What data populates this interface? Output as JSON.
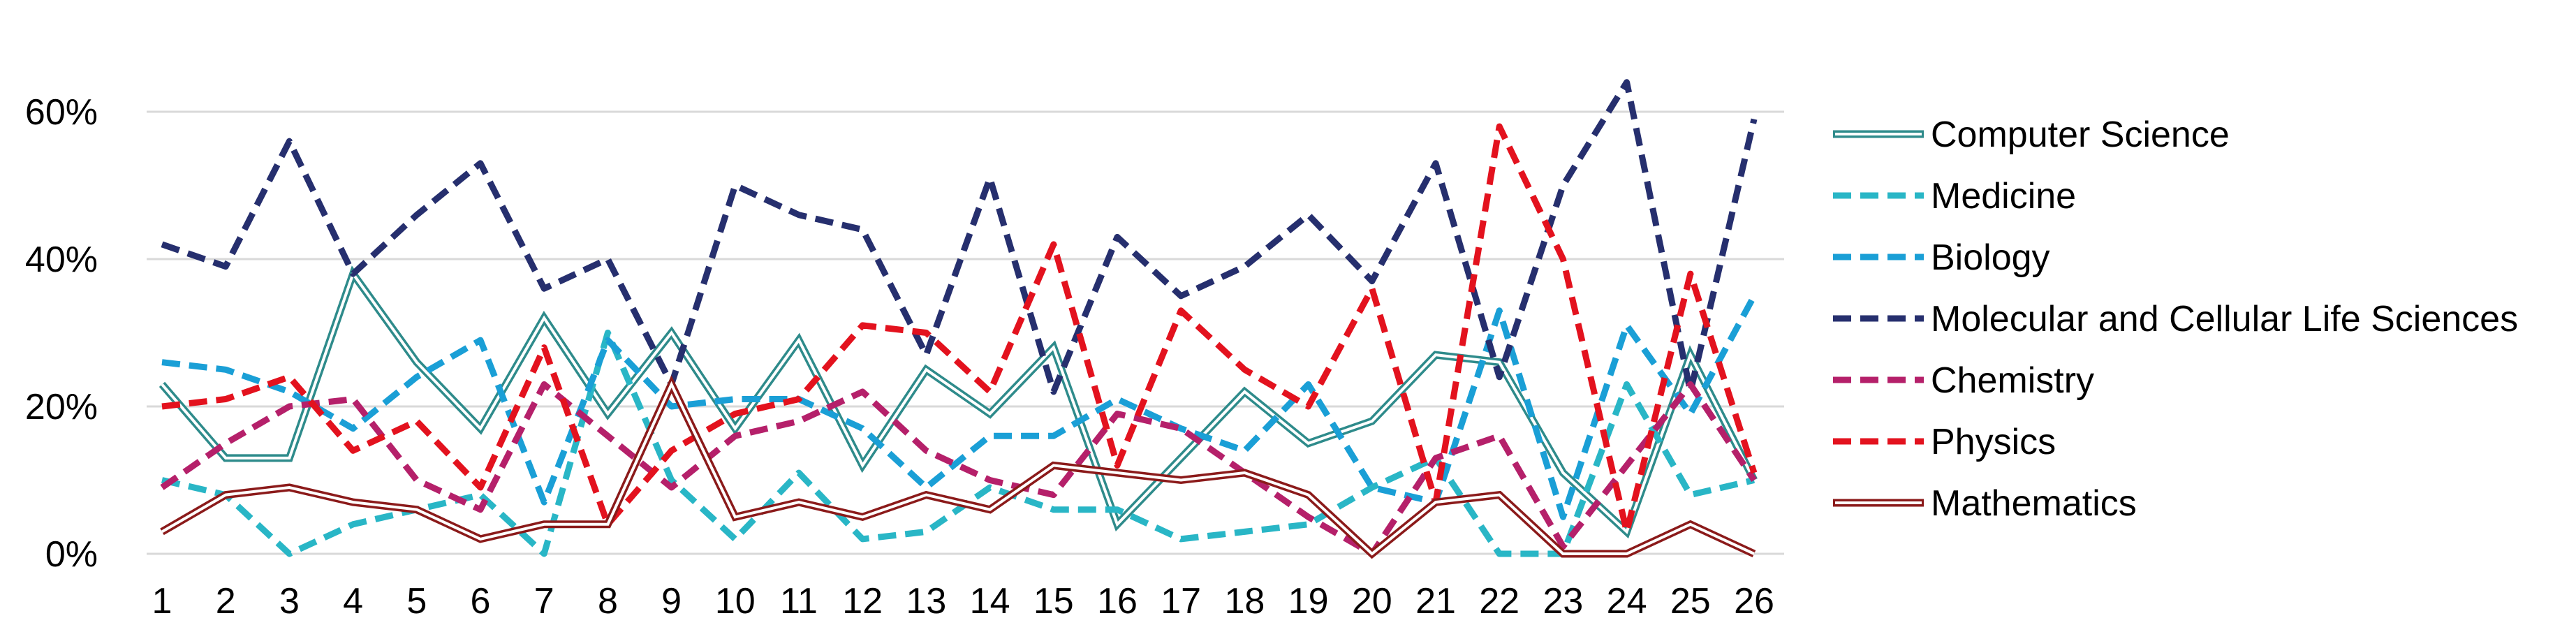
{
  "chart_data": {
    "type": "line",
    "title": "",
    "xlabel": "",
    "ylabel": "",
    "x": [
      1,
      2,
      3,
      4,
      5,
      6,
      7,
      8,
      9,
      10,
      11,
      12,
      13,
      14,
      15,
      16,
      17,
      18,
      19,
      20,
      21,
      22,
      23,
      24,
      25,
      26
    ],
    "x_tick_labels": [
      "1",
      "2",
      "3",
      "4",
      "5",
      "6",
      "7",
      "8",
      "9",
      "10",
      "11",
      "12",
      "13",
      "14",
      "15",
      "16",
      "17",
      "18",
      "19",
      "20",
      "21",
      "22",
      "23",
      "24",
      "25",
      "26"
    ],
    "ylim": [
      0,
      0.6
    ],
    "y_ticks": [
      0,
      0.2,
      0.4,
      0.6
    ],
    "y_tick_labels": [
      "0%",
      "20%",
      "40%",
      "60%"
    ],
    "grid": "horizontal",
    "legend_position": "right",
    "series": [
      {
        "name": "Computer Science",
        "color": "#2e8b8b",
        "style": "double",
        "values": [
          0.23,
          0.13,
          0.13,
          0.38,
          0.26,
          0.17,
          0.32,
          0.19,
          0.3,
          0.17,
          0.29,
          0.12,
          0.25,
          0.19,
          0.28,
          0.04,
          0.13,
          0.22,
          0.15,
          0.18,
          0.27,
          0.26,
          0.11,
          0.03,
          0.27,
          0.1
        ]
      },
      {
        "name": "Medicine",
        "color": "#29b6c6",
        "style": "dashed",
        "values": [
          0.1,
          0.08,
          0.0,
          0.04,
          0.06,
          0.08,
          0.0,
          0.3,
          0.1,
          0.02,
          0.11,
          0.02,
          0.03,
          0.09,
          0.06,
          0.06,
          0.02,
          0.03,
          0.04,
          0.09,
          0.13,
          0.0,
          0.0,
          0.23,
          0.08,
          0.1
        ]
      },
      {
        "name": "Biology",
        "color": "#1a9fd6",
        "style": "dashed",
        "values": [
          0.26,
          0.25,
          0.22,
          0.17,
          0.24,
          0.29,
          0.07,
          0.29,
          0.2,
          0.21,
          0.21,
          0.17,
          0.09,
          0.16,
          0.16,
          0.21,
          0.17,
          0.14,
          0.23,
          0.09,
          0.07,
          0.33,
          0.05,
          0.31,
          0.19,
          0.35
        ]
      },
      {
        "name": "Molecular and Cellular Life Sciences",
        "color": "#262f6e",
        "style": "dashed",
        "values": [
          0.42,
          0.39,
          0.56,
          0.38,
          0.46,
          0.53,
          0.36,
          0.4,
          0.23,
          0.5,
          0.46,
          0.44,
          0.27,
          0.51,
          0.22,
          0.43,
          0.35,
          0.39,
          0.46,
          0.37,
          0.53,
          0.24,
          0.5,
          0.64,
          0.22,
          0.59
        ]
      },
      {
        "name": "Chemistry",
        "color": "#b5206a",
        "style": "dashed",
        "values": [
          0.09,
          0.15,
          0.2,
          0.21,
          0.1,
          0.06,
          0.23,
          0.16,
          0.09,
          0.16,
          0.18,
          0.22,
          0.14,
          0.1,
          0.08,
          0.19,
          0.17,
          0.11,
          0.05,
          0.0,
          0.13,
          0.16,
          0.01,
          0.12,
          0.23,
          0.1
        ]
      },
      {
        "name": "Physics",
        "color": "#e3121e",
        "style": "dashed",
        "values": [
          0.2,
          0.21,
          0.24,
          0.14,
          0.18,
          0.09,
          0.28,
          0.04,
          0.14,
          0.19,
          0.21,
          0.31,
          0.3,
          0.22,
          0.42,
          0.12,
          0.33,
          0.25,
          0.2,
          0.36,
          0.07,
          0.58,
          0.4,
          0.03,
          0.38,
          0.11
        ]
      },
      {
        "name": "Mathematics",
        "color": "#8b1a1a",
        "style": "double",
        "values": [
          0.03,
          0.08,
          0.09,
          0.07,
          0.06,
          0.02,
          0.04,
          0.04,
          0.23,
          0.05,
          0.07,
          0.05,
          0.08,
          0.06,
          0.12,
          0.11,
          0.1,
          0.11,
          0.08,
          0.0,
          0.07,
          0.08,
          0.0,
          0.0,
          0.04,
          0.0
        ]
      }
    ]
  }
}
